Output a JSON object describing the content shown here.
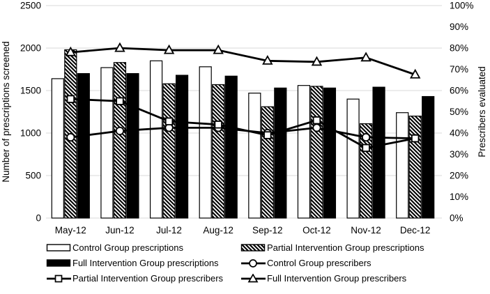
{
  "chart_data": {
    "type": "bar+line combo",
    "categories": [
      "May-12",
      "Jun-12",
      "Jul-12",
      "Aug-12",
      "Sep-12",
      "Oct-12",
      "Nov-12",
      "Dec-12"
    ],
    "bar_series": [
      {
        "name": "Control Group prescriptions",
        "style": "white-outline",
        "values": [
          1640,
          1770,
          1850,
          1780,
          1470,
          1560,
          1400,
          1240
        ]
      },
      {
        "name": "Partial Intervention Group prescriptions",
        "style": "diagonal-hatch",
        "values": [
          1980,
          1830,
          1580,
          1570,
          1310,
          1550,
          1110,
          1200
        ]
      },
      {
        "name": "Full Intervention Group prescriptions",
        "style": "solid-black",
        "values": [
          1700,
          1700,
          1680,
          1670,
          1530,
          1530,
          1540,
          1430
        ]
      }
    ],
    "line_series": [
      {
        "name": "Control Group prescribers",
        "marker": "circle",
        "values_percent": [
          38,
          41,
          42.5,
          42.5,
          40,
          42.5,
          38,
          37.5
        ]
      },
      {
        "name": "Partial Intervention Group prescribers",
        "marker": "square",
        "values_percent": [
          56,
          55,
          45.5,
          44,
          39,
          46,
          33,
          37.5
        ]
      },
      {
        "name": "Full Intervention Group prescribers",
        "marker": "triangle",
        "values_percent": [
          78,
          80,
          79,
          79,
          74,
          73.5,
          75.5,
          67.5
        ]
      }
    ],
    "left_axis": {
      "title": "Number of prescriptions screened",
      "range": [
        0,
        2500
      ],
      "tick_step": 500,
      "tick_labels": [
        "0",
        "500",
        "1000",
        "1500",
        "2000",
        "2500"
      ]
    },
    "right_axis": {
      "title": "Prescribers evaluated",
      "range_percent": [
        0,
        100
      ],
      "tick_step_percent": 10,
      "tick_labels": [
        "0%",
        "10%",
        "20%",
        "30%",
        "40%",
        "50%",
        "60%",
        "70%",
        "80%",
        "90%",
        "100%"
      ]
    },
    "legend": {
      "position": "bottom",
      "entries": [
        {
          "label": "Control Group prescriptions",
          "swatch": "bar-white"
        },
        {
          "label": "Partial Intervention Group prescriptions",
          "swatch": "bar-hatched"
        },
        {
          "label": "Full Intervention Group prescriptions",
          "swatch": "bar-black"
        },
        {
          "label": "Control Group prescribers",
          "swatch": "line-circle"
        },
        {
          "label": "Partial Intervention Group prescribers",
          "swatch": "line-square"
        },
        {
          "label": "Full Intervention Group prescribers",
          "swatch": "line-triangle"
        }
      ]
    },
    "grid": true,
    "colors": {
      "ink": "#000000",
      "gridline": "#d9d9d9",
      "background": "#ffffff"
    }
  }
}
